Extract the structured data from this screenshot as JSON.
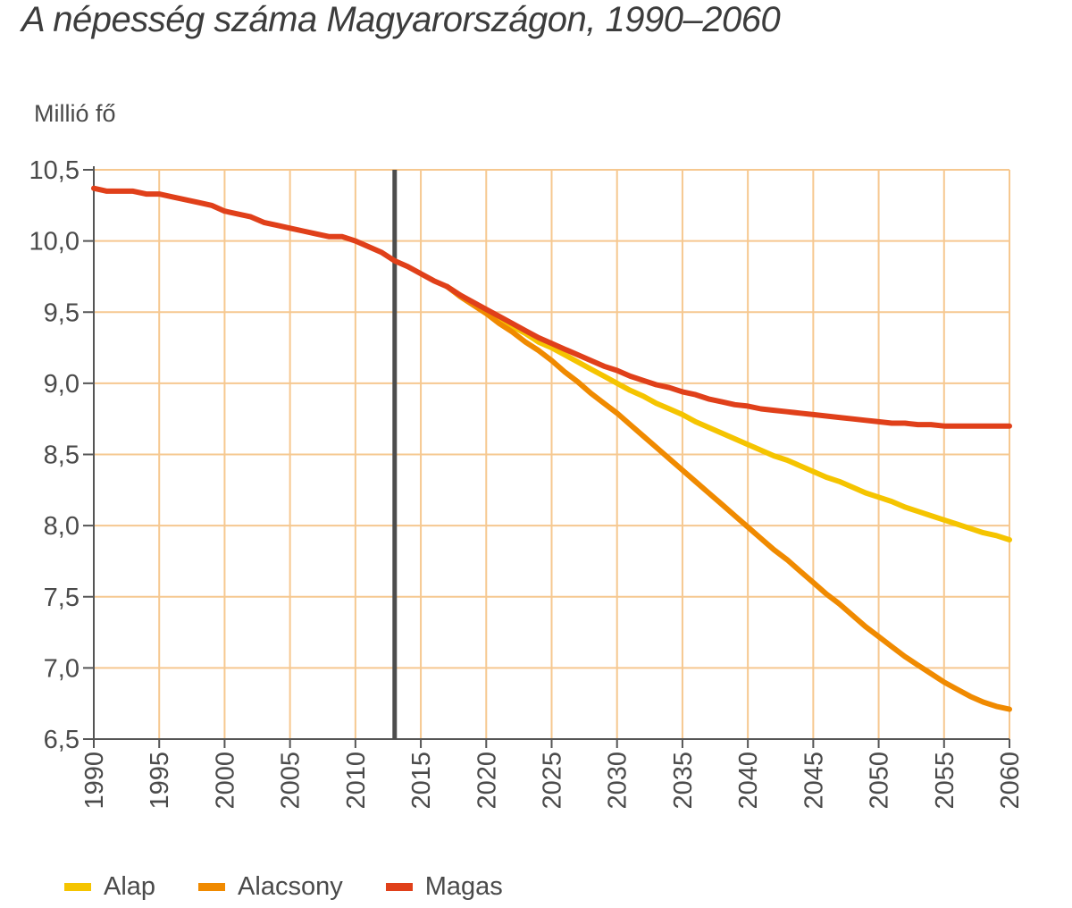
{
  "chart_data": {
    "type": "line",
    "title": "A népesség száma Magyarországon, 1990–2060",
    "ylabel": "Millió fő",
    "xlabel": "",
    "xlim": [
      1990,
      2060
    ],
    "ylim": [
      6.5,
      10.5
    ],
    "x_ticks": [
      "1990",
      "1995",
      "2000",
      "2005",
      "2010",
      "2015",
      "2020",
      "2025",
      "2030",
      "2035",
      "2040",
      "2045",
      "2050",
      "2055",
      "2060"
    ],
    "y_ticks": [
      "6,5",
      "7,0",
      "7,5",
      "8,0",
      "8,5",
      "9,0",
      "9,5",
      "10,0",
      "10,5"
    ],
    "vertical_marker": 2013,
    "grid": true,
    "legend_position": "bottom-left",
    "history": {
      "x": [
        1990,
        1991,
        1992,
        1993,
        1994,
        1995,
        1996,
        1997,
        1998,
        1999,
        2000,
        2001,
        2002,
        2003,
        2004,
        2005,
        2006,
        2007,
        2008,
        2009,
        2010,
        2011,
        2012,
        2013,
        2014,
        2015,
        2016,
        2017
      ],
      "values": [
        10.37,
        10.35,
        10.35,
        10.35,
        10.33,
        10.33,
        10.31,
        10.29,
        10.27,
        10.25,
        10.21,
        10.19,
        10.17,
        10.13,
        10.11,
        10.09,
        10.07,
        10.05,
        10.03,
        10.03,
        10.0,
        9.96,
        9.92,
        9.86,
        9.82,
        9.77,
        9.72,
        9.68
      ]
    },
    "series": [
      {
        "name": "Alap",
        "color": "#f5c400",
        "x": [
          2017,
          2018,
          2019,
          2020,
          2021,
          2022,
          2023,
          2024,
          2025,
          2026,
          2027,
          2028,
          2029,
          2030,
          2031,
          2032,
          2033,
          2034,
          2035,
          2036,
          2037,
          2038,
          2039,
          2040,
          2041,
          2042,
          2043,
          2044,
          2045,
          2046,
          2047,
          2048,
          2049,
          2050,
          2051,
          2052,
          2053,
          2054,
          2055,
          2056,
          2057,
          2058,
          2059,
          2060
        ],
        "values": [
          9.68,
          9.62,
          9.56,
          9.51,
          9.45,
          9.4,
          9.35,
          9.29,
          9.25,
          9.2,
          9.15,
          9.1,
          9.05,
          9.0,
          8.95,
          8.91,
          8.86,
          8.82,
          8.78,
          8.73,
          8.69,
          8.65,
          8.61,
          8.57,
          8.53,
          8.49,
          8.46,
          8.42,
          8.38,
          8.34,
          8.31,
          8.27,
          8.23,
          8.2,
          8.17,
          8.13,
          8.1,
          8.07,
          8.04,
          8.01,
          7.98,
          7.95,
          7.93,
          7.9
        ]
      },
      {
        "name": "Alacsony",
        "color": "#f08a00",
        "x": [
          2017,
          2018,
          2019,
          2020,
          2021,
          2022,
          2023,
          2024,
          2025,
          2026,
          2027,
          2028,
          2029,
          2030,
          2031,
          2032,
          2033,
          2034,
          2035,
          2036,
          2037,
          2038,
          2039,
          2040,
          2041,
          2042,
          2043,
          2044,
          2045,
          2046,
          2047,
          2048,
          2049,
          2050,
          2051,
          2052,
          2053,
          2054,
          2055,
          2056,
          2057,
          2058,
          2059,
          2060
        ],
        "values": [
          9.68,
          9.61,
          9.55,
          9.49,
          9.42,
          9.36,
          9.29,
          9.23,
          9.16,
          9.08,
          9.01,
          8.93,
          8.86,
          8.79,
          8.71,
          8.63,
          8.55,
          8.47,
          8.39,
          8.31,
          8.23,
          8.15,
          8.07,
          7.99,
          7.91,
          7.83,
          7.76,
          7.68,
          7.6,
          7.52,
          7.45,
          7.37,
          7.29,
          7.22,
          7.15,
          7.08,
          7.02,
          6.96,
          6.9,
          6.85,
          6.8,
          6.76,
          6.73,
          6.71
        ]
      },
      {
        "name": "Magas",
        "color": "#e0401a",
        "x": [
          2017,
          2018,
          2019,
          2020,
          2021,
          2022,
          2023,
          2024,
          2025,
          2026,
          2027,
          2028,
          2029,
          2030,
          2031,
          2032,
          2033,
          2034,
          2035,
          2036,
          2037,
          2038,
          2039,
          2040,
          2041,
          2042,
          2043,
          2044,
          2045,
          2046,
          2047,
          2048,
          2049,
          2050,
          2051,
          2052,
          2053,
          2054,
          2055,
          2056,
          2057,
          2058,
          2059,
          2060
        ],
        "values": [
          9.68,
          9.62,
          9.57,
          9.52,
          9.47,
          9.42,
          9.37,
          9.32,
          9.28,
          9.24,
          9.2,
          9.16,
          9.12,
          9.09,
          9.05,
          9.02,
          8.99,
          8.97,
          8.94,
          8.92,
          8.89,
          8.87,
          8.85,
          8.84,
          8.82,
          8.81,
          8.8,
          8.79,
          8.78,
          8.77,
          8.76,
          8.75,
          8.74,
          8.73,
          8.72,
          8.72,
          8.71,
          8.71,
          8.7,
          8.7,
          8.7,
          8.7,
          8.7,
          8.7
        ]
      }
    ]
  }
}
